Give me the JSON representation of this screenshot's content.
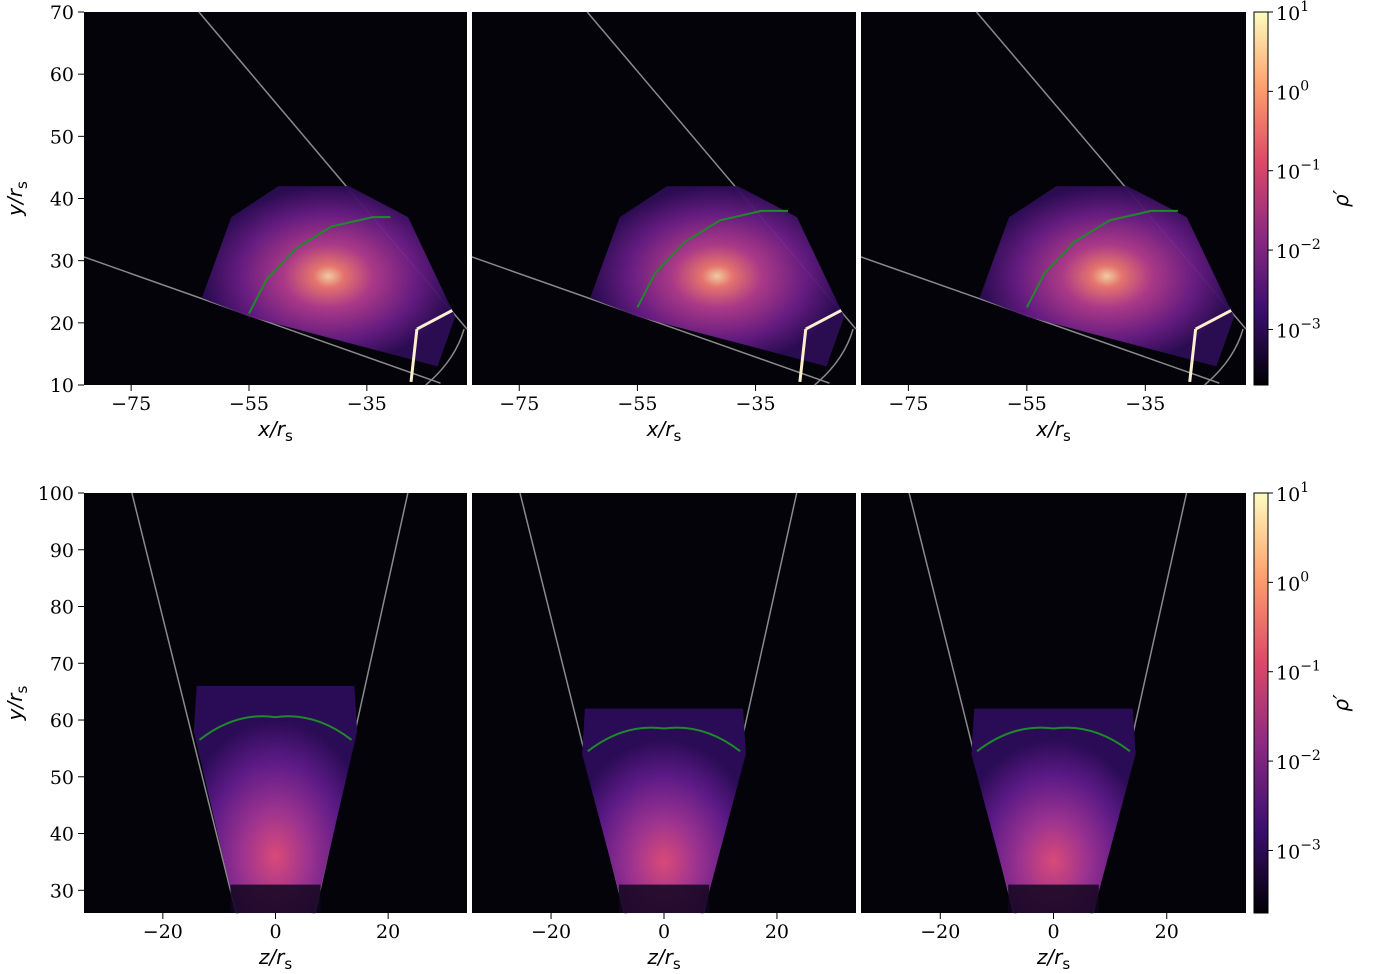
{
  "colors": {
    "background_panel": "#030309",
    "wedge_edge": "#8a8a8a",
    "contour": "#1f8a2a",
    "colormap": [
      "#000004",
      "#3b0f70",
      "#8c2981",
      "#de4968",
      "#fe9f6d",
      "#fcfdbf"
    ]
  },
  "chart_data": [
    {
      "type": "heatmap",
      "row": "top",
      "panels": 3,
      "xlabel": "x/r_s",
      "ylabel": "y/r_s",
      "xlim": [
        -83,
        -18
      ],
      "ylim": [
        10,
        70
      ],
      "x_ticks": [
        -75,
        -55,
        -35
      ],
      "x_tick_labels": [
        "−75",
        "−55",
        "−35"
      ],
      "y_ticks": [
        10,
        20,
        30,
        40,
        50,
        60,
        70
      ],
      "y_tick_labels": [
        "10",
        "20",
        "30",
        "40",
        "50",
        "60",
        "70"
      ],
      "colorbar": {
        "label": "ρ′",
        "scale": "log",
        "ticks": [
          10,
          1,
          0.1,
          0.01,
          0.001
        ],
        "tick_labels": [
          [
            "10",
            "1"
          ],
          [
            "10",
            "0"
          ],
          [
            "10",
            "−1"
          ],
          [
            "10",
            "−2"
          ],
          [
            "10",
            "−3"
          ]
        ]
      }
    },
    {
      "type": "heatmap",
      "row": "bottom",
      "panels": 3,
      "xlabel": "z/r_s",
      "ylabel": "y/r_s",
      "xlim": [
        -34,
        34
      ],
      "ylim": [
        26,
        100
      ],
      "x_ticks": [
        -20,
        0,
        20
      ],
      "x_tick_labels": [
        "−20",
        "0",
        "20"
      ],
      "y_ticks": [
        30,
        40,
        50,
        60,
        70,
        80,
        90,
        100
      ],
      "y_tick_labels": [
        "30",
        "40",
        "50",
        "60",
        "70",
        "80",
        "90",
        "100"
      ],
      "colorbar": {
        "label": "ρ′",
        "scale": "log",
        "ticks": [
          10,
          1,
          0.1,
          0.01,
          0.001
        ],
        "tick_labels": [
          [
            "10",
            "1"
          ],
          [
            "10",
            "0"
          ],
          [
            "10",
            "−1"
          ],
          [
            "10",
            "−2"
          ],
          [
            "10",
            "−3"
          ]
        ]
      }
    }
  ]
}
